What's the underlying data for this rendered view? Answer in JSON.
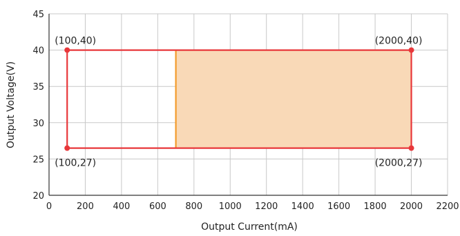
{
  "chart_data": {
    "type": "area",
    "title": "",
    "xlabel": "Output Current(mA)",
    "ylabel": "Output Voltage(V)",
    "xlim": [
      0,
      2200
    ],
    "ylim": [
      20,
      45
    ],
    "xticks": [
      0,
      200,
      400,
      600,
      800,
      1000,
      1200,
      1400,
      1600,
      1800,
      2000,
      2200
    ],
    "yticks": [
      20,
      25,
      30,
      35,
      40,
      45
    ],
    "grid": true,
    "region": {
      "corners": [
        {
          "x": 100,
          "y": 40,
          "label": "(100,40)"
        },
        {
          "x": 2000,
          "y": 40,
          "label": "(2000,40)"
        },
        {
          "x": 2000,
          "y": 26.5,
          "label": "(2000,27)"
        },
        {
          "x": 100,
          "y": 26.5,
          "label": "(100,27)"
        }
      ],
      "outline_color": "#e8373a",
      "point_color": "#e8373a"
    },
    "shaded_region": {
      "x_from": 700,
      "x_to": 2000,
      "y_from": 26.5,
      "y_to": 40,
      "fill_color": "#f9d9b7",
      "edge_color": "#f39c2b"
    }
  }
}
